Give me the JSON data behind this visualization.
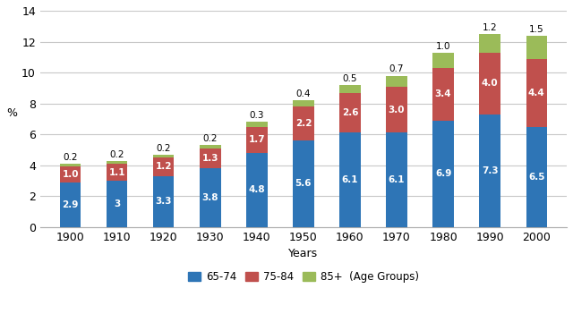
{
  "years": [
    "1900",
    "1910",
    "1920",
    "1930",
    "1940",
    "1950",
    "1960",
    "1970",
    "1980",
    "1990",
    "2000"
  ],
  "age_65_74": [
    2.9,
    3.0,
    3.3,
    3.8,
    4.8,
    5.6,
    6.1,
    6.1,
    6.9,
    7.3,
    6.5
  ],
  "age_75_84": [
    1.0,
    1.1,
    1.2,
    1.3,
    1.7,
    2.2,
    2.6,
    3.0,
    3.4,
    4.0,
    4.4
  ],
  "age_85_plus": [
    0.2,
    0.2,
    0.2,
    0.2,
    0.3,
    0.4,
    0.5,
    0.7,
    1.0,
    1.2,
    1.5
  ],
  "color_65_74": "#2E75B6",
  "color_75_84": "#C0504D",
  "color_85_plus": "#9BBB59",
  "ylabel": "%",
  "xlabel": "Years",
  "ylim": [
    0,
    14
  ],
  "yticks": [
    0,
    2,
    4,
    6,
    8,
    10,
    12,
    14
  ],
  "legend_labels": [
    "65-74",
    "75-84",
    "85+  (Age Groups)"
  ],
  "bar_width": 0.45,
  "label_fontsize": 7.5,
  "axis_fontsize": 9,
  "legend_fontsize": 8.5,
  "background_color": "#FFFFFF",
  "grid_color": "#C8C8C8"
}
